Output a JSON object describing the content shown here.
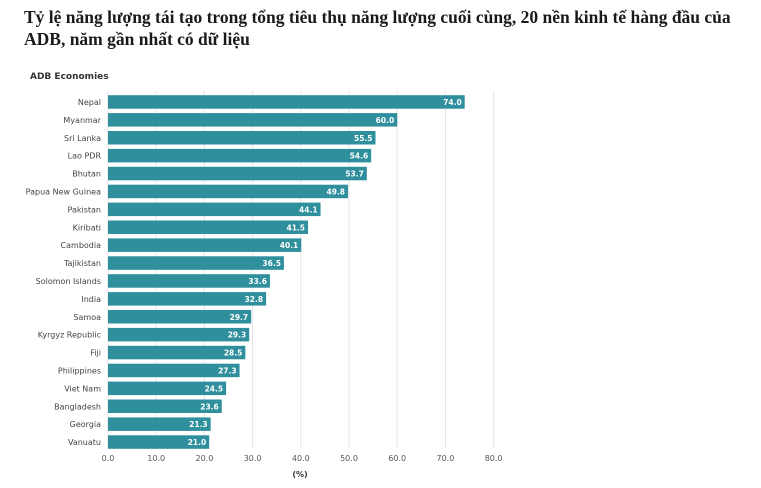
{
  "page": {
    "title": "Tỷ lệ năng lượng tái tạo trong tổng tiêu thụ năng lượng cuối cùng, 20 nền kinh tế hàng đầu của ADB, năm gần nhất có dữ liệu"
  },
  "chart_data": {
    "type": "bar",
    "orientation": "horizontal",
    "subtitle": "ADB Economies",
    "xlabel": "(%)",
    "ylabel": "",
    "xlim": [
      0,
      80
    ],
    "ticks": [
      "0.0",
      "10.0",
      "20.0",
      "30.0",
      "40.0",
      "50.0",
      "60.0",
      "70.0",
      "80.0"
    ],
    "grid": "vertical",
    "bar_color": "#2f8f9d",
    "categories": [
      "Nepal",
      "Myanmar",
      "Sri Lanka",
      "Lao PDR",
      "Bhutan",
      "Papua New Guinea",
      "Pakistan",
      "Kiribati",
      "Cambodia",
      "Tajikistan",
      "Solomon Islands",
      "India",
      "Samoa",
      "Kyrgyz Republic",
      "Fiji",
      "Philippines",
      "Viet Nam",
      "Bangladesh",
      "Georgia",
      "Vanuatu"
    ],
    "values": [
      74.0,
      60.0,
      55.5,
      54.6,
      53.7,
      49.8,
      44.1,
      41.5,
      40.1,
      36.5,
      33.6,
      32.8,
      29.7,
      29.3,
      28.5,
      27.3,
      24.5,
      23.6,
      21.3,
      21.0
    ],
    "value_labels": [
      "74.0",
      "60.0",
      "55.5",
      "54.6",
      "53.7",
      "49.8",
      "44.1",
      "41.5",
      "40.1",
      "36.5",
      "33.6",
      "32.8",
      "29.7",
      "29.3",
      "28.5",
      "27.3",
      "24.5",
      "23.6",
      "21.3",
      "21.0"
    ]
  }
}
